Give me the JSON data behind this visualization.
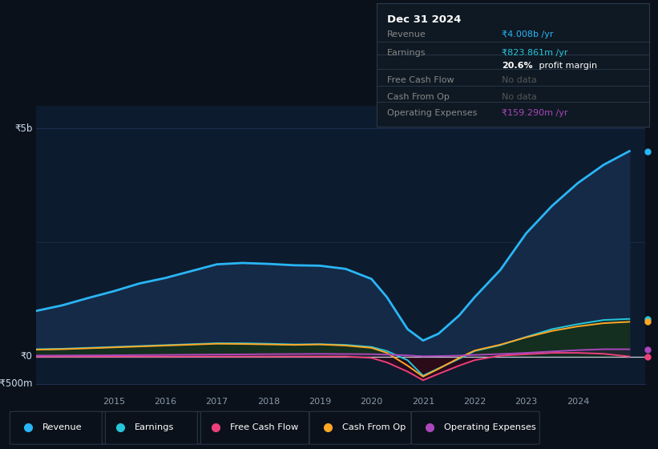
{
  "background_color": "#0b111a",
  "plot_bg_color": "#0d1b2e",
  "title": "Dec 31 2024",
  "y_label_top": "₹5b",
  "y_label_zero": "₹0",
  "y_label_bot": "-₹500m",
  "ylim": [
    -600,
    5500
  ],
  "xlim": [
    2013.5,
    2025.3
  ],
  "years": [
    2013.5,
    2014.0,
    2014.5,
    2015.0,
    2015.5,
    2016.0,
    2016.5,
    2017.0,
    2017.5,
    2018.0,
    2018.5,
    2019.0,
    2019.5,
    2020.0,
    2020.3,
    2020.7,
    2021.0,
    2021.3,
    2021.7,
    2022.0,
    2022.5,
    2023.0,
    2023.5,
    2024.0,
    2024.5,
    2025.0
  ],
  "revenue": [
    1000,
    1120,
    1280,
    1430,
    1600,
    1720,
    1870,
    2020,
    2050,
    2030,
    2000,
    1990,
    1920,
    1700,
    1300,
    600,
    350,
    500,
    900,
    1300,
    1900,
    2700,
    3300,
    3800,
    4200,
    4500
  ],
  "earnings": [
    160,
    170,
    190,
    210,
    230,
    250,
    270,
    290,
    290,
    280,
    265,
    270,
    255,
    210,
    120,
    -80,
    -420,
    -260,
    -50,
    120,
    250,
    430,
    600,
    710,
    800,
    824
  ],
  "cash_from_op": [
    150,
    160,
    180,
    200,
    220,
    240,
    260,
    280,
    275,
    265,
    255,
    265,
    240,
    190,
    80,
    -200,
    -440,
    -270,
    -30,
    130,
    260,
    420,
    560,
    660,
    730,
    760
  ],
  "free_cash_flow": [
    0,
    0,
    0,
    0,
    0,
    0,
    0,
    0,
    0,
    0,
    0,
    0,
    0,
    -30,
    -130,
    -330,
    -520,
    -380,
    -200,
    -80,
    20,
    50,
    80,
    80,
    60,
    0
  ],
  "operating_expenses": [
    20,
    22,
    25,
    28,
    32,
    36,
    40,
    44,
    48,
    52,
    55,
    58,
    55,
    52,
    42,
    25,
    5,
    10,
    20,
    35,
    55,
    80,
    110,
    140,
    160,
    159
  ],
  "revenue_color": "#29b6f6",
  "earnings_color": "#26c6da",
  "free_cash_flow_color": "#ec407a",
  "cash_from_op_color": "#ffa726",
  "operating_expenses_color": "#ab47bc",
  "revenue_fill_alpha": 0.9,
  "earnings_fill_alpha": 0.7,
  "grid_color": "#1e3050",
  "zero_line_color": "#ffffff",
  "x_ticks": [
    2015,
    2016,
    2017,
    2018,
    2019,
    2020,
    2021,
    2022,
    2023,
    2024
  ],
  "legend_labels": [
    "Revenue",
    "Earnings",
    "Free Cash Flow",
    "Cash From Op",
    "Operating Expenses"
  ],
  "tooltip_bg": "#0f1923",
  "tooltip_border": "#2a3a4a",
  "tooltip_title_color": "#ffffff",
  "tooltip_label_color": "#888888",
  "tooltip_nodata_color": "#555555"
}
